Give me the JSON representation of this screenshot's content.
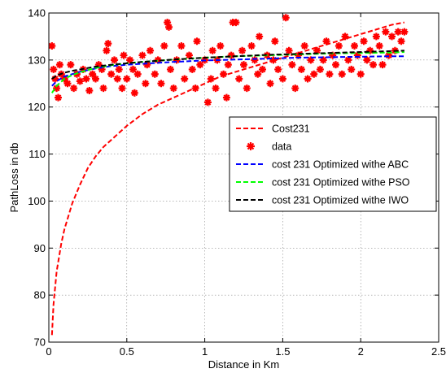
{
  "chart_data": {
    "type": "line",
    "title": "",
    "xlabel": "Distance in Km",
    "ylabel": "PathLoss in db",
    "xlim": [
      0,
      2.5
    ],
    "ylim": [
      70,
      140
    ],
    "xticks": [
      0,
      0.5,
      1,
      1.5,
      2,
      2.5
    ],
    "xtick_labels": [
      "0",
      "0.5",
      "1",
      "1.5",
      "2",
      "2.5"
    ],
    "yticks": [
      70,
      80,
      90,
      100,
      110,
      120,
      130,
      140
    ],
    "ytick_labels": [
      "70",
      "80",
      "90",
      "100",
      "110",
      "120",
      "130",
      "140"
    ],
    "grid": true,
    "legend_position": "right",
    "series": [
      {
        "name": "Cost231",
        "style": "dashed",
        "color": "#ff0000",
        "x": [
          0.02,
          0.03,
          0.05,
          0.08,
          0.1,
          0.15,
          0.2,
          0.25,
          0.3,
          0.35,
          0.4,
          0.5,
          0.6,
          0.7,
          0.8,
          0.9,
          1.0,
          1.1,
          1.2,
          1.3,
          1.4,
          1.5,
          1.6,
          1.7,
          1.8,
          1.9,
          2.0,
          2.1,
          2.2,
          2.28
        ],
        "y": [
          71.5,
          78,
          85,
          91,
          94,
          99.5,
          103.5,
          107,
          109.5,
          111.5,
          113,
          116,
          118.5,
          120.5,
          122,
          123.5,
          125,
          126.5,
          127.5,
          128.5,
          129.5,
          130.5,
          131.5,
          132.5,
          133.5,
          134.5,
          135.5,
          136.5,
          137.5,
          138
        ]
      },
      {
        "name": "data",
        "style": "markers",
        "color": "#ff0000",
        "points": [
          [
            0.02,
            133
          ],
          [
            0.03,
            128
          ],
          [
            0.04,
            126
          ],
          [
            0.05,
            124
          ],
          [
            0.06,
            122
          ],
          [
            0.07,
            129
          ],
          [
            0.08,
            127
          ],
          [
            0.1,
            126
          ],
          [
            0.12,
            125
          ],
          [
            0.14,
            129
          ],
          [
            0.16,
            124
          ],
          [
            0.18,
            127
          ],
          [
            0.2,
            125.5
          ],
          [
            0.22,
            128
          ],
          [
            0.24,
            126
          ],
          [
            0.26,
            123.5
          ],
          [
            0.28,
            127
          ],
          [
            0.3,
            126
          ],
          [
            0.32,
            129
          ],
          [
            0.34,
            128
          ],
          [
            0.35,
            124
          ],
          [
            0.37,
            132
          ],
          [
            0.38,
            133.5
          ],
          [
            0.4,
            127
          ],
          [
            0.42,
            130
          ],
          [
            0.44,
            126
          ],
          [
            0.45,
            128
          ],
          [
            0.47,
            124
          ],
          [
            0.48,
            131
          ],
          [
            0.5,
            126
          ],
          [
            0.52,
            130
          ],
          [
            0.54,
            128
          ],
          [
            0.55,
            123
          ],
          [
            0.57,
            127
          ],
          [
            0.6,
            131
          ],
          [
            0.62,
            125
          ],
          [
            0.63,
            129
          ],
          [
            0.65,
            132
          ],
          [
            0.68,
            127
          ],
          [
            0.7,
            130
          ],
          [
            0.72,
            125
          ],
          [
            0.74,
            133
          ],
          [
            0.76,
            138
          ],
          [
            0.77,
            137
          ],
          [
            0.78,
            128
          ],
          [
            0.8,
            124
          ],
          [
            0.82,
            130
          ],
          [
            0.85,
            133
          ],
          [
            0.87,
            126
          ],
          [
            0.9,
            131
          ],
          [
            0.92,
            128
          ],
          [
            0.94,
            124
          ],
          [
            0.95,
            134
          ],
          [
            0.97,
            129
          ],
          [
            1.0,
            130
          ],
          [
            1.02,
            121
          ],
          [
            1.04,
            126
          ],
          [
            1.05,
            132
          ],
          [
            1.07,
            124
          ],
          [
            1.08,
            130
          ],
          [
            1.1,
            133
          ],
          [
            1.12,
            127
          ],
          [
            1.14,
            122
          ],
          [
            1.15,
            129
          ],
          [
            1.17,
            131
          ],
          [
            1.18,
            138
          ],
          [
            1.2,
            138
          ],
          [
            1.22,
            126
          ],
          [
            1.24,
            132
          ],
          [
            1.25,
            129
          ],
          [
            1.27,
            124
          ],
          [
            1.3,
            133
          ],
          [
            1.32,
            130
          ],
          [
            1.34,
            127
          ],
          [
            1.35,
            135
          ],
          [
            1.37,
            128
          ],
          [
            1.4,
            131
          ],
          [
            1.42,
            125
          ],
          [
            1.44,
            130
          ],
          [
            1.45,
            134
          ],
          [
            1.47,
            128
          ],
          [
            1.5,
            126
          ],
          [
            1.52,
            139
          ],
          [
            1.54,
            132
          ],
          [
            1.56,
            129
          ],
          [
            1.58,
            124
          ],
          [
            1.6,
            131
          ],
          [
            1.62,
            128
          ],
          [
            1.64,
            133
          ],
          [
            1.66,
            126
          ],
          [
            1.68,
            130
          ],
          [
            1.7,
            127
          ],
          [
            1.72,
            132
          ],
          [
            1.74,
            128
          ],
          [
            1.76,
            130
          ],
          [
            1.78,
            134
          ],
          [
            1.8,
            127
          ],
          [
            1.82,
            131
          ],
          [
            1.84,
            129
          ],
          [
            1.86,
            133
          ],
          [
            1.88,
            127
          ],
          [
            1.9,
            135
          ],
          [
            1.92,
            130
          ],
          [
            1.94,
            128
          ],
          [
            1.96,
            133
          ],
          [
            1.98,
            131
          ],
          [
            2.0,
            127
          ],
          [
            2.02,
            134
          ],
          [
            2.04,
            130
          ],
          [
            2.06,
            132
          ],
          [
            2.08,
            129
          ],
          [
            2.1,
            135
          ],
          [
            2.12,
            133
          ],
          [
            2.14,
            129
          ],
          [
            2.16,
            136
          ],
          [
            2.18,
            131
          ],
          [
            2.2,
            135
          ],
          [
            2.22,
            132
          ],
          [
            2.24,
            136
          ],
          [
            2.26,
            134
          ],
          [
            2.28,
            136
          ]
        ]
      },
      {
        "name": "cost 231 Optimized withe ABC",
        "style": "dashed",
        "color": "#0000ff",
        "x": [
          0.02,
          0.05,
          0.1,
          0.15,
          0.2,
          0.3,
          0.4,
          0.5,
          0.6,
          0.8,
          1.0,
          1.2,
          1.4,
          1.6,
          1.8,
          2.0,
          2.2,
          2.28
        ],
        "y": [
          124.5,
          125.5,
          126.5,
          127,
          127.5,
          128.2,
          128.7,
          129,
          129.2,
          129.6,
          129.9,
          130.1,
          130.3,
          130.5,
          130.6,
          130.7,
          130.8,
          130.8
        ]
      },
      {
        "name": "cost 231 Optimized withe PSO",
        "style": "dashed",
        "color": "#00ff00",
        "x": [
          0.02,
          0.05,
          0.1,
          0.15,
          0.2,
          0.3,
          0.4,
          0.5,
          0.6,
          0.8,
          1.0,
          1.2,
          1.4,
          1.6,
          1.8,
          2.0,
          2.2,
          2.28
        ],
        "y": [
          123,
          124.5,
          126,
          126.8,
          127.4,
          128.3,
          128.9,
          129.3,
          129.6,
          130.1,
          130.5,
          130.8,
          131,
          131.2,
          131.4,
          131.5,
          131.6,
          131.7
        ]
      },
      {
        "name": "cost 231 Optimized withe IWO",
        "style": "dashed",
        "color": "#000000",
        "x": [
          0.02,
          0.05,
          0.1,
          0.15,
          0.2,
          0.3,
          0.4,
          0.5,
          0.6,
          0.8,
          1.0,
          1.2,
          1.4,
          1.6,
          1.8,
          2.0,
          2.2,
          2.28
        ],
        "y": [
          126,
          126.7,
          127.3,
          127.7,
          128,
          128.6,
          129,
          129.3,
          129.6,
          130.1,
          130.5,
          130.8,
          131.1,
          131.3,
          131.5,
          131.7,
          131.9,
          132
        ]
      }
    ]
  }
}
